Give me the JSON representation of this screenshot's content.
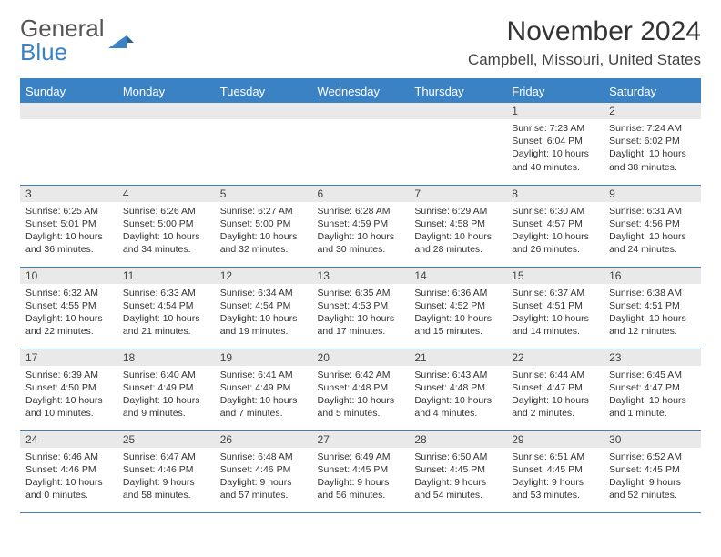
{
  "brand": {
    "part1": "General",
    "part2": "Blue"
  },
  "title": "November 2024",
  "location": "Campbell, Missouri, United States",
  "colors": {
    "accent": "#3b82c4",
    "header_bg": "#3b82c4",
    "header_text": "#ffffff",
    "daynum_bg": "#e9e9e9",
    "body_text": "#333333"
  },
  "weekdays": [
    "Sunday",
    "Monday",
    "Tuesday",
    "Wednesday",
    "Thursday",
    "Friday",
    "Saturday"
  ],
  "weeks": [
    [
      {
        "empty": true
      },
      {
        "empty": true
      },
      {
        "empty": true
      },
      {
        "empty": true
      },
      {
        "empty": true
      },
      {
        "num": "1",
        "sunrise": "Sunrise: 7:23 AM",
        "sunset": "Sunset: 6:04 PM",
        "daylight": "Daylight: 10 hours and 40 minutes."
      },
      {
        "num": "2",
        "sunrise": "Sunrise: 7:24 AM",
        "sunset": "Sunset: 6:02 PM",
        "daylight": "Daylight: 10 hours and 38 minutes."
      }
    ],
    [
      {
        "num": "3",
        "sunrise": "Sunrise: 6:25 AM",
        "sunset": "Sunset: 5:01 PM",
        "daylight": "Daylight: 10 hours and 36 minutes."
      },
      {
        "num": "4",
        "sunrise": "Sunrise: 6:26 AM",
        "sunset": "Sunset: 5:00 PM",
        "daylight": "Daylight: 10 hours and 34 minutes."
      },
      {
        "num": "5",
        "sunrise": "Sunrise: 6:27 AM",
        "sunset": "Sunset: 5:00 PM",
        "daylight": "Daylight: 10 hours and 32 minutes."
      },
      {
        "num": "6",
        "sunrise": "Sunrise: 6:28 AM",
        "sunset": "Sunset: 4:59 PM",
        "daylight": "Daylight: 10 hours and 30 minutes."
      },
      {
        "num": "7",
        "sunrise": "Sunrise: 6:29 AM",
        "sunset": "Sunset: 4:58 PM",
        "daylight": "Daylight: 10 hours and 28 minutes."
      },
      {
        "num": "8",
        "sunrise": "Sunrise: 6:30 AM",
        "sunset": "Sunset: 4:57 PM",
        "daylight": "Daylight: 10 hours and 26 minutes."
      },
      {
        "num": "9",
        "sunrise": "Sunrise: 6:31 AM",
        "sunset": "Sunset: 4:56 PM",
        "daylight": "Daylight: 10 hours and 24 minutes."
      }
    ],
    [
      {
        "num": "10",
        "sunrise": "Sunrise: 6:32 AM",
        "sunset": "Sunset: 4:55 PM",
        "daylight": "Daylight: 10 hours and 22 minutes."
      },
      {
        "num": "11",
        "sunrise": "Sunrise: 6:33 AM",
        "sunset": "Sunset: 4:54 PM",
        "daylight": "Daylight: 10 hours and 21 minutes."
      },
      {
        "num": "12",
        "sunrise": "Sunrise: 6:34 AM",
        "sunset": "Sunset: 4:54 PM",
        "daylight": "Daylight: 10 hours and 19 minutes."
      },
      {
        "num": "13",
        "sunrise": "Sunrise: 6:35 AM",
        "sunset": "Sunset: 4:53 PM",
        "daylight": "Daylight: 10 hours and 17 minutes."
      },
      {
        "num": "14",
        "sunrise": "Sunrise: 6:36 AM",
        "sunset": "Sunset: 4:52 PM",
        "daylight": "Daylight: 10 hours and 15 minutes."
      },
      {
        "num": "15",
        "sunrise": "Sunrise: 6:37 AM",
        "sunset": "Sunset: 4:51 PM",
        "daylight": "Daylight: 10 hours and 14 minutes."
      },
      {
        "num": "16",
        "sunrise": "Sunrise: 6:38 AM",
        "sunset": "Sunset: 4:51 PM",
        "daylight": "Daylight: 10 hours and 12 minutes."
      }
    ],
    [
      {
        "num": "17",
        "sunrise": "Sunrise: 6:39 AM",
        "sunset": "Sunset: 4:50 PM",
        "daylight": "Daylight: 10 hours and 10 minutes."
      },
      {
        "num": "18",
        "sunrise": "Sunrise: 6:40 AM",
        "sunset": "Sunset: 4:49 PM",
        "daylight": "Daylight: 10 hours and 9 minutes."
      },
      {
        "num": "19",
        "sunrise": "Sunrise: 6:41 AM",
        "sunset": "Sunset: 4:49 PM",
        "daylight": "Daylight: 10 hours and 7 minutes."
      },
      {
        "num": "20",
        "sunrise": "Sunrise: 6:42 AM",
        "sunset": "Sunset: 4:48 PM",
        "daylight": "Daylight: 10 hours and 5 minutes."
      },
      {
        "num": "21",
        "sunrise": "Sunrise: 6:43 AM",
        "sunset": "Sunset: 4:48 PM",
        "daylight": "Daylight: 10 hours and 4 minutes."
      },
      {
        "num": "22",
        "sunrise": "Sunrise: 6:44 AM",
        "sunset": "Sunset: 4:47 PM",
        "daylight": "Daylight: 10 hours and 2 minutes."
      },
      {
        "num": "23",
        "sunrise": "Sunrise: 6:45 AM",
        "sunset": "Sunset: 4:47 PM",
        "daylight": "Daylight: 10 hours and 1 minute."
      }
    ],
    [
      {
        "num": "24",
        "sunrise": "Sunrise: 6:46 AM",
        "sunset": "Sunset: 4:46 PM",
        "daylight": "Daylight: 10 hours and 0 minutes."
      },
      {
        "num": "25",
        "sunrise": "Sunrise: 6:47 AM",
        "sunset": "Sunset: 4:46 PM",
        "daylight": "Daylight: 9 hours and 58 minutes."
      },
      {
        "num": "26",
        "sunrise": "Sunrise: 6:48 AM",
        "sunset": "Sunset: 4:46 PM",
        "daylight": "Daylight: 9 hours and 57 minutes."
      },
      {
        "num": "27",
        "sunrise": "Sunrise: 6:49 AM",
        "sunset": "Sunset: 4:45 PM",
        "daylight": "Daylight: 9 hours and 56 minutes."
      },
      {
        "num": "28",
        "sunrise": "Sunrise: 6:50 AM",
        "sunset": "Sunset: 4:45 PM",
        "daylight": "Daylight: 9 hours and 54 minutes."
      },
      {
        "num": "29",
        "sunrise": "Sunrise: 6:51 AM",
        "sunset": "Sunset: 4:45 PM",
        "daylight": "Daylight: 9 hours and 53 minutes."
      },
      {
        "num": "30",
        "sunrise": "Sunrise: 6:52 AM",
        "sunset": "Sunset: 4:45 PM",
        "daylight": "Daylight: 9 hours and 52 minutes."
      }
    ]
  ]
}
